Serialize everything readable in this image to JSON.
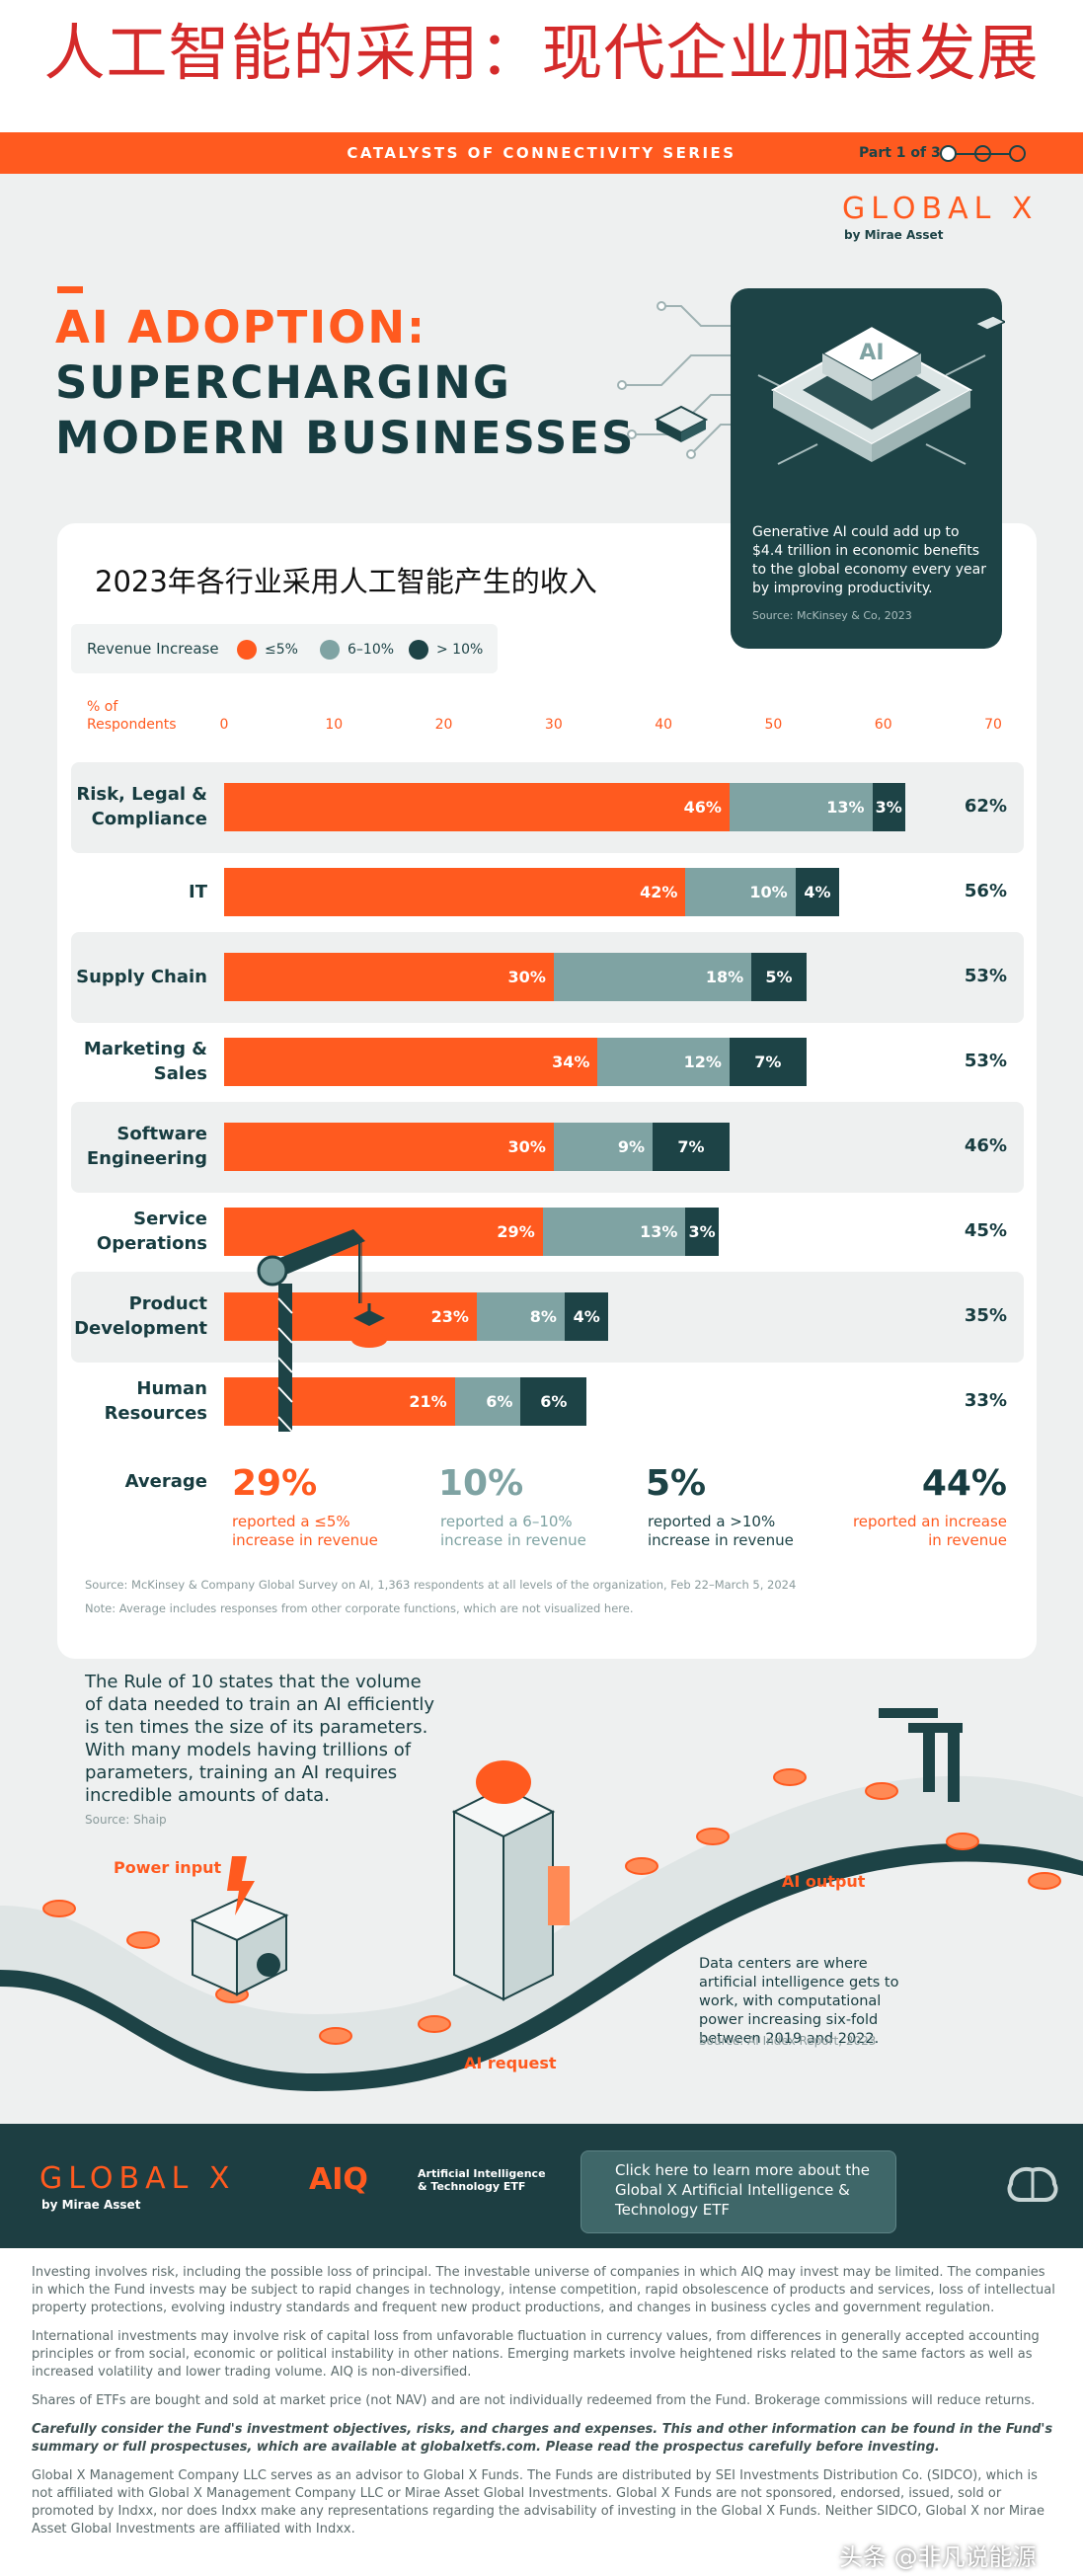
{
  "header": {
    "cn_title": "人工智能的采用：现代企业加速发展"
  },
  "series_bar": {
    "title": "CATALYSTS OF CONNECTIVITY SERIES",
    "part": "Part 1 of 3"
  },
  "brand": {
    "logo": "GLOBAL X",
    "logo_sub": "by Mirae Asset"
  },
  "headline": {
    "line1": "AI ADOPTION:",
    "line2": "SUPERCHARGING",
    "line3": "MODERN BUSINESSES"
  },
  "callout": {
    "chip_label": "AI",
    "text": "Generative AI could add up to $4.4 trillion in economic benefits to the global economy every year by improving productivity.",
    "source": "Source: McKinsey & Co, 2023"
  },
  "chart_data": {
    "type": "bar",
    "orientation": "horizontal",
    "stacked": true,
    "title": "2023年各行业采用人工智能产生的收入",
    "legend": {
      "title": "Revenue Increase",
      "labels": [
        "≤5%",
        "6–10%",
        "> 10%"
      ]
    },
    "xlabel": "% of Respondents",
    "xlim": [
      0,
      70
    ],
    "xticks": [
      0,
      10,
      20,
      30,
      40,
      50,
      60,
      70
    ],
    "categories": [
      "Risk, Legal & Compliance",
      "IT",
      "Supply Chain",
      "Marketing & Sales",
      "Software Engineering",
      "Service Operations",
      "Product Development",
      "Human Resources"
    ],
    "series": [
      {
        "name": "≤5%",
        "values": [
          46,
          42,
          30,
          34,
          30,
          29,
          23,
          21
        ]
      },
      {
        "name": "6–10%",
        "values": [
          13,
          10,
          18,
          12,
          9,
          13,
          8,
          6
        ]
      },
      {
        "name": "> 10%",
        "values": [
          3,
          4,
          5,
          7,
          7,
          3,
          4,
          6
        ]
      }
    ],
    "totals": [
      62,
      56,
      53,
      53,
      46,
      45,
      35,
      33
    ],
    "average": {
      "label": "Average",
      "items": [
        {
          "value": "29%",
          "desc": "reported a ≤5% increase in revenue"
        },
        {
          "value": "10%",
          "desc": "reported a 6–10% increase in revenue"
        },
        {
          "value": "5%",
          "desc": "reported a >10% increase in revenue"
        },
        {
          "value": "44%",
          "desc": "reported an increase in revenue"
        }
      ]
    },
    "source": "Source: McKinsey & Company Global Survey on AI, 1,363 respondents at all levels of the organization, Feb 22–March 5, 2024",
    "note": "Note: Average includes responses from other corporate functions, which are not visualized here."
  },
  "colors": {
    "orange": "#ff5a1f",
    "grey": "#7fa3a3",
    "teal": "#1d4346"
  },
  "rule_of_10": {
    "text": "The Rule of 10 states that the volume of data needed to train an AI efficiently is ten times the size of its parameters. With many models having trillions of parameters, training an AI requires incredible amounts of data.",
    "source": "Source: Shaip"
  },
  "conveyor": {
    "power_input": "Power input",
    "ai_output": "AI output",
    "ai_request": "AI request",
    "data_center_text": "Data centers are where artificial intelligence gets to work, with computational power increasing six-fold between 2019 and 2022.",
    "data_center_source": "Source: AI Index Report, 2023"
  },
  "footer": {
    "logo": "GLOBAL X",
    "logo_sub": "by Mirae Asset",
    "aiq_mark": "AIQ",
    "aiq_name": "Artificial Intelligence & Technology ETF",
    "cta": "Click here to learn more about the Global X Artificial Intelligence & Technology ETF"
  },
  "disclaimer": [
    "Investing involves risk, including the possible loss of principal. The investable universe of companies in which AIQ may invest may be limited. The companies in which the Fund invests may be subject to rapid changes in technology, intense competition, rapid obsolescence of products and services, loss of intellectual property protections, evolving industry standards and frequent new product productions, and changes in business cycles and government regulation.",
    "International investments may involve risk of capital loss from unfavorable fluctuation in currency values, from differences in generally accepted accounting principles or from social, economic or political instability in other nations. Emerging markets involve heightened risks related to the same factors as well as increased volatility and lower trading volume. AIQ is non-diversified.",
    "Shares of ETFs are bought and sold at market price (not NAV) and are not individually redeemed from the Fund. Brokerage commissions will reduce returns.",
    "Carefully consider the Fund's investment objectives, risks, and charges and expenses. This and other information can be found in the Fund's summary or full prospectuses, which are available at globalxetfs.com. Please read the prospectus carefully before investing.",
    "Global X Management Company LLC serves as an advisor to Global X Funds. The Funds are distributed by SEI Investments Distribution Co. (SIDCO), which is not affiliated with Global X Management Company LLC or Mirae Asset Global Investments. Global X Funds are not sponsored, endorsed, issued, sold or promoted by Indxx, nor does Indxx make any representations regarding the advisability of investing in the Global X Funds. Neither SIDCO, Global X nor Mirae Asset Global Investments are affiliated with Indxx."
  ],
  "watermark": "头条 @非凡说能源"
}
